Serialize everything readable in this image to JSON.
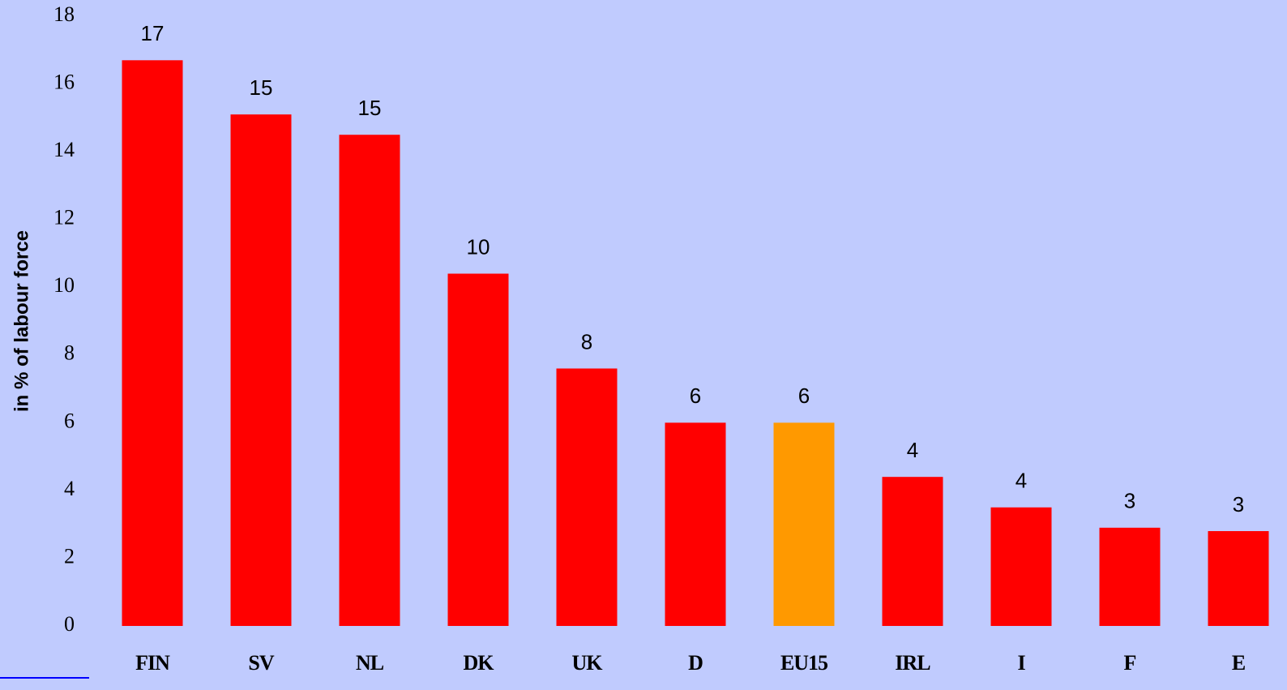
{
  "chart_data": {
    "type": "bar",
    "y_label": "in % of labour force",
    "categories": [
      "FIN",
      "SV",
      "NL",
      "DK",
      "UK",
      "D",
      "EU15",
      "IRL",
      "I",
      "F",
      "E"
    ],
    "values": [
      16.7,
      15.1,
      14.5,
      10.4,
      7.6,
      6.0,
      6.0,
      4.4,
      3.5,
      2.9,
      2.8
    ],
    "value_labels": [
      "17",
      "15",
      "15",
      "10",
      "8",
      "6",
      "6",
      "4",
      "4",
      "3",
      "3"
    ],
    "colors": [
      "#ff0000",
      "#ff0000",
      "#ff0000",
      "#ff0000",
      "#ff0000",
      "#ff0000",
      "#ff9900",
      "#ff0000",
      "#ff0000",
      "#ff0000",
      "#ff0000"
    ],
    "ylim": [
      0,
      18
    ],
    "yticks": [
      0,
      2,
      4,
      6,
      8,
      10,
      12,
      14,
      16,
      18
    ],
    "grid": false
  }
}
